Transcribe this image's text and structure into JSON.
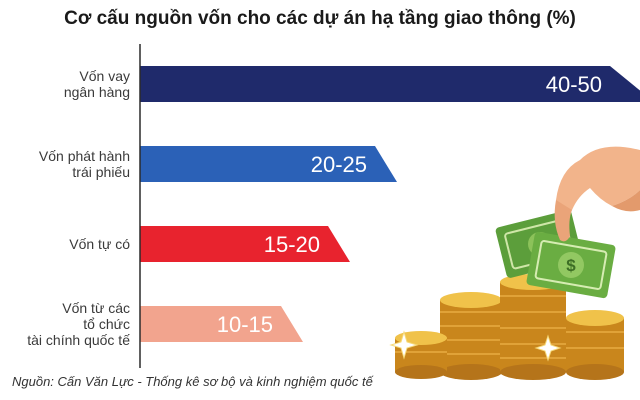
{
  "chart_data": {
    "type": "bar",
    "orientation": "horizontal",
    "title": "Cơ cấu nguồn vốn cho các dự án hạ tầng giao thông (%)",
    "categories": [
      [
        "Vốn vay",
        "ngân hàng"
      ],
      [
        "Vốn phát hành",
        "trái phiếu"
      ],
      [
        "Vốn tự có"
      ],
      [
        "Vốn từ các",
        "tổ chức",
        "tài chính quốc tế"
      ]
    ],
    "values": [
      [
        40,
        50
      ],
      [
        20,
        25
      ],
      [
        15,
        20
      ],
      [
        10,
        15
      ]
    ],
    "value_labels": [
      "40-50",
      "20-25",
      "15-20",
      "10-15"
    ],
    "colors": [
      "#1f2a6b",
      "#2b61b7",
      "#e8232e",
      "#f2a48e"
    ],
    "xlim": [
      0,
      50
    ],
    "grid": false,
    "legend": "none"
  },
  "source": "Nguồn: Cấn Văn Lực - Thống kê sơ bộ và kinh nghiệm quốc tế",
  "illustration": [
    "hand-holding-money-icon",
    "coin-stack-icon",
    "sparkle-icon"
  ]
}
